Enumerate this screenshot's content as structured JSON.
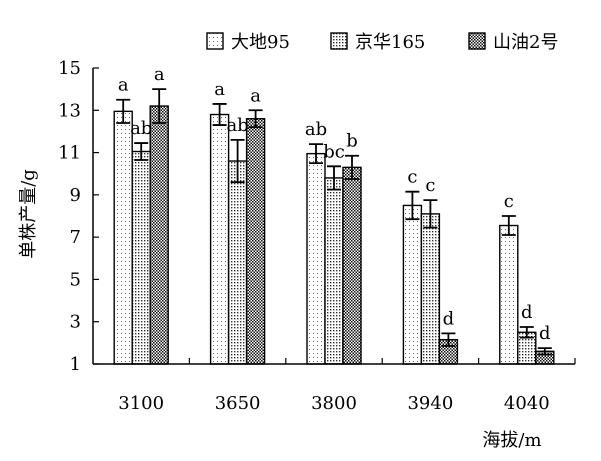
{
  "chart_data": {
    "type": "bar",
    "categories": [
      "3100",
      "3650",
      "3800",
      "3940",
      "4040"
    ],
    "xlabel": "海拔/m",
    "ylabel": "单株产量/g",
    "ylim": [
      1,
      15
    ],
    "yticks": [
      1,
      3,
      5,
      7,
      9,
      11,
      13,
      15
    ],
    "grid": false,
    "legend_position": "top",
    "series": [
      {
        "name": "大地95",
        "pattern": "light-dots",
        "values": [
          12.95,
          12.8,
          10.95,
          8.5,
          7.55
        ],
        "errors": [
          0.55,
          0.5,
          0.45,
          0.65,
          0.45
        ],
        "labels": [
          "a",
          "a",
          "ab",
          "c",
          "c"
        ]
      },
      {
        "name": "京华165",
        "pattern": "medium-dots",
        "values": [
          11.05,
          10.6,
          9.8,
          8.1,
          2.5
        ],
        "errors": [
          0.4,
          1.0,
          0.55,
          0.65,
          0.25
        ],
        "labels": [
          "ab",
          "ab",
          "bc",
          "c",
          "d"
        ]
      },
      {
        "name": "山油2号",
        "pattern": "checker",
        "values": [
          13.2,
          12.6,
          10.3,
          2.15,
          1.6
        ],
        "errors": [
          0.8,
          0.4,
          0.55,
          0.3,
          0.15
        ],
        "labels": [
          "a",
          "a",
          "b",
          "d",
          "d"
        ]
      }
    ]
  }
}
